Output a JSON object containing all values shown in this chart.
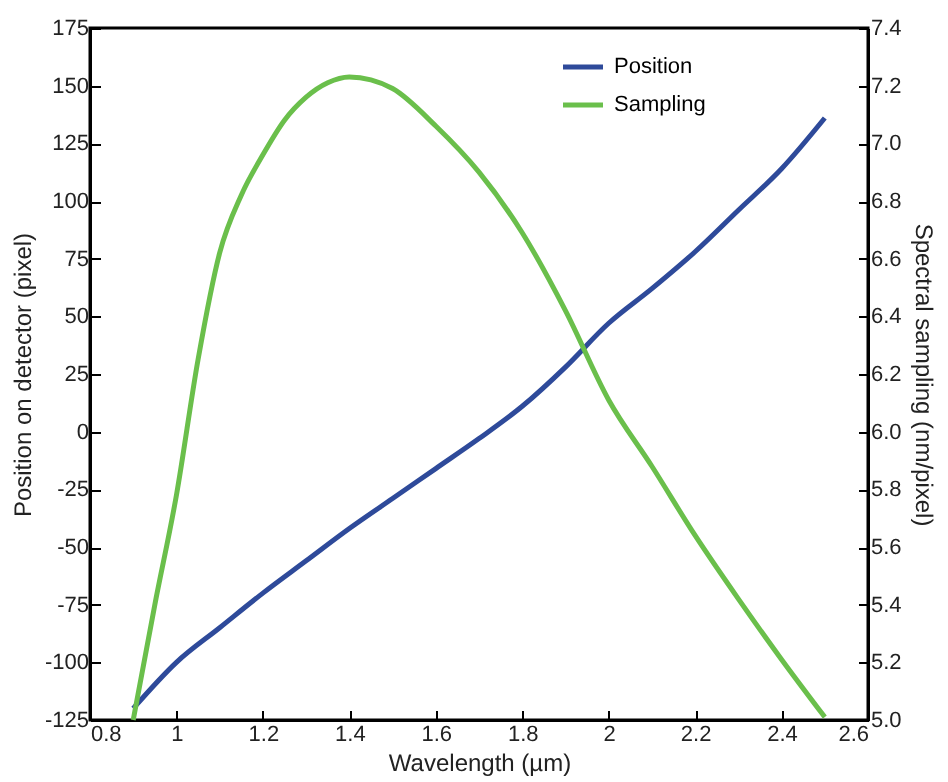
{
  "chart_data": {
    "type": "line",
    "xlabel": "Wavelength (µm)",
    "ylabel": "Position on detector (pixel)",
    "y2label": "Spectral sampling (nm/pixel)",
    "xlim": [
      0.8,
      2.6
    ],
    "xticks": [
      0.8,
      1,
      1.2,
      1.4,
      1.6,
      1.8,
      2,
      2.2,
      2.4,
      2.6
    ],
    "ylim": [
      -125,
      175
    ],
    "yticks": [
      -125,
      -100,
      -75,
      -50,
      -25,
      0,
      25,
      50,
      75,
      100,
      125,
      150,
      175
    ],
    "y2lim": [
      5.0,
      7.4
    ],
    "y2ticks": [
      {
        "value": 5,
        "label": "5.0"
      },
      5.2,
      5.4,
      5.6,
      5.8,
      {
        "value": 6,
        "label": "6.0"
      },
      6.2,
      6.4,
      6.6,
      6.8,
      {
        "value": 7,
        "label": "7.0"
      },
      7.2,
      7.4
    ],
    "legend": "top right",
    "grid": false,
    "series": [
      {
        "name": "Position",
        "color": "#2e4a9a",
        "x": [
          0.9,
          1.0,
          1.1,
          1.2,
          1.3,
          1.4,
          1.5,
          1.6,
          1.7,
          1.8,
          1.9,
          2.0,
          2.1,
          2.2,
          2.3,
          2.4,
          2.5
        ],
        "values": [
          -120,
          -100,
          -85,
          -70,
          -56,
          -42,
          -29,
          -16,
          -3,
          11,
          28,
          47,
          62,
          78,
          96,
          114,
          136
        ]
      },
      {
        "name": "Sampling",
        "color": "#6abf4b",
        "axis": "y2",
        "x": [
          0.9,
          0.95,
          1.0,
          1.05,
          1.1,
          1.15,
          1.2,
          1.25,
          1.3,
          1.35,
          1.4,
          1.45,
          1.5,
          1.6,
          1.7,
          1.8,
          1.9,
          2.0,
          2.1,
          2.2,
          2.3,
          2.4,
          2.5
        ],
        "values": [
          5.0,
          5.4,
          5.78,
          6.25,
          6.62,
          6.82,
          6.96,
          7.08,
          7.16,
          7.21,
          7.23,
          7.22,
          7.19,
          7.06,
          6.9,
          6.69,
          6.42,
          6.11,
          5.88,
          5.64,
          5.42,
          5.21,
          5.01
        ]
      }
    ]
  }
}
